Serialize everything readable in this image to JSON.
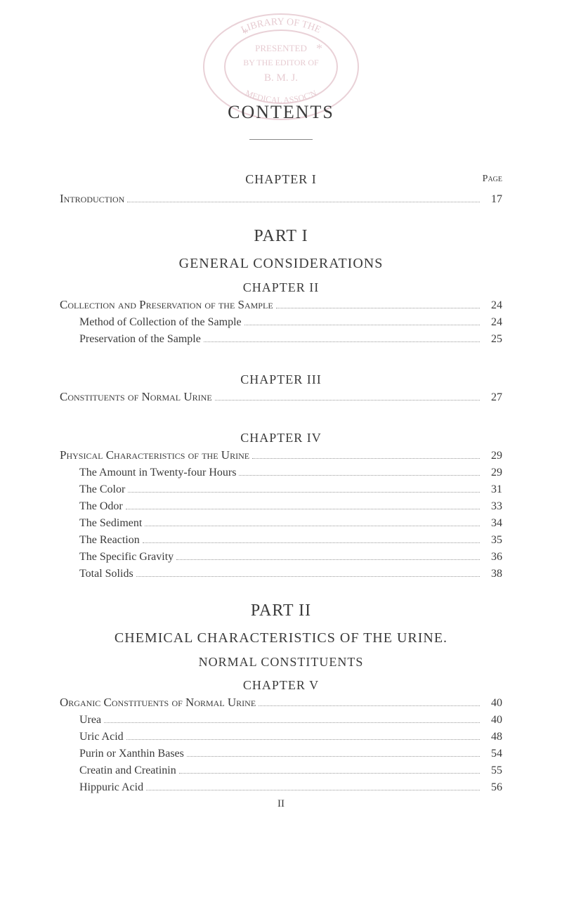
{
  "stamp": {
    "top_arc": "LIBRARY OF THE",
    "inner1": "PRESENTED",
    "inner2": "BY THE EDITOR OF",
    "inner3": "B. M. J.",
    "bottom_arc": "MEDICAL ASSOC'N",
    "color": "#a8475c"
  },
  "title": "CONTENTS",
  "page_label": "Page",
  "chapter1": {
    "heading": "CHAPTER I",
    "lines": [
      {
        "label": "Introduction",
        "page": "17",
        "indent": 0,
        "smallcaps": true
      }
    ]
  },
  "part1": {
    "title": "PART I",
    "subtitle": "GENERAL CONSIDERATIONS"
  },
  "chapter2": {
    "heading": "CHAPTER II",
    "lines": [
      {
        "label": "Collection and Preservation of the Sample",
        "page": "24",
        "indent": 0,
        "smallcaps": true
      },
      {
        "label": "Method of Collection of the Sample",
        "page": "24",
        "indent": 1,
        "smallcaps": false
      },
      {
        "label": "Preservation of the Sample",
        "page": "25",
        "indent": 1,
        "smallcaps": false
      }
    ]
  },
  "chapter3": {
    "heading": "CHAPTER III",
    "lines": [
      {
        "label": "Constituents of Normal Urine",
        "page": "27",
        "indent": 0,
        "smallcaps": true
      }
    ]
  },
  "chapter4": {
    "heading": "CHAPTER IV",
    "lines": [
      {
        "label": "Physical Characteristics of the Urine",
        "page": "29",
        "indent": 0,
        "smallcaps": true
      },
      {
        "label": "The Amount in Twenty-four Hours",
        "page": "29",
        "indent": 1,
        "smallcaps": false
      },
      {
        "label": "The Color",
        "page": "31",
        "indent": 1,
        "smallcaps": false
      },
      {
        "label": "The Odor",
        "page": "33",
        "indent": 1,
        "smallcaps": false
      },
      {
        "label": "The Sediment",
        "page": "34",
        "indent": 1,
        "smallcaps": false
      },
      {
        "label": "The Reaction",
        "page": "35",
        "indent": 1,
        "smallcaps": false
      },
      {
        "label": "The Specific Gravity",
        "page": "36",
        "indent": 1,
        "smallcaps": false
      },
      {
        "label": "Total Solids",
        "page": "38",
        "indent": 1,
        "smallcaps": false
      }
    ]
  },
  "part2": {
    "title": "PART II",
    "subtitle": "CHEMICAL CHARACTERISTICS OF THE URINE.",
    "subtitle2": "NORMAL CONSTITUENTS"
  },
  "chapter5": {
    "heading": "CHAPTER V",
    "lines": [
      {
        "label": "Organic Constituents of Normal Urine",
        "page": "40",
        "indent": 0,
        "smallcaps": true
      },
      {
        "label": "Urea",
        "page": "40",
        "indent": 1,
        "smallcaps": false
      },
      {
        "label": "Uric Acid",
        "page": "48",
        "indent": 1,
        "smallcaps": false
      },
      {
        "label": "Purin or Xanthin Bases",
        "page": "54",
        "indent": 1,
        "smallcaps": false
      },
      {
        "label": "Creatin and Creatinin",
        "page": "55",
        "indent": 1,
        "smallcaps": false
      },
      {
        "label": "Hippuric Acid",
        "page": "56",
        "indent": 1,
        "smallcaps": false
      }
    ]
  },
  "footer": "II"
}
